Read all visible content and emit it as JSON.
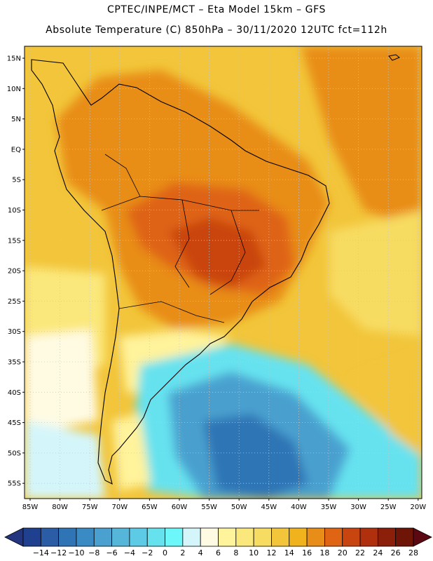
{
  "header": {
    "line1": "CPTEC/INPE/MCT –  Eta Model 15km – GFS",
    "line2": "Absolute Temperature (C) 850hPa – 30/11/2020 12UTC fct=112h"
  },
  "map": {
    "lat_labels": [
      "15N",
      "10N",
      "5N",
      "EQ",
      "5S",
      "10S",
      "15S",
      "20S",
      "25S",
      "30S",
      "35S",
      "40S",
      "45S",
      "50S",
      "55S"
    ],
    "lon_labels": [
      "85W",
      "80W",
      "75W",
      "70W",
      "65W",
      "60W",
      "55W",
      "50W",
      "45W",
      "40W",
      "35W",
      "30W",
      "25W",
      "20W"
    ]
  },
  "colorbar": {
    "labels": [
      "-14",
      "-12",
      "-10",
      "-8",
      "-6",
      "-4",
      "-2",
      "0",
      "2",
      "4",
      "6",
      "8",
      "10",
      "12",
      "14",
      "16",
      "18",
      "20",
      "22",
      "24",
      "26",
      "28"
    ],
    "colors": [
      "#1f3f8f",
      "#2a5da6",
      "#2f74b5",
      "#3a8ac4",
      "#4aa0cf",
      "#55b6d9",
      "#5ecbe6",
      "#66e2ef",
      "#6cf7fb",
      "#d4f6fb",
      "#fffbe3",
      "#fff39b",
      "#fbe87c",
      "#f7dc62",
      "#f2c53a",
      "#f0b21d",
      "#e88d18",
      "#df6414",
      "#c94510",
      "#b0300d",
      "#8c1f0a",
      "#6e1508"
    ],
    "under_color": "#23357e",
    "over_color": "#5c0812"
  },
  "colors": {
    "sea_warm": "#f0b21d",
    "land_hot": "#e88d18",
    "land_hotter": "#df6414",
    "cold_core": "#2f74b5",
    "coastline": "#000000",
    "grid": "#bdbdbd"
  }
}
